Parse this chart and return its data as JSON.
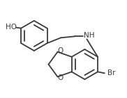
{
  "bg_color": "#ffffff",
  "line_color": "#3a3a3a",
  "line_width": 1.3,
  "figsize": [
    1.82,
    1.41
  ],
  "dpi": 100,
  "ho_label": "HO",
  "br_label": "Br",
  "nh_label": "NH",
  "o_label": "O",
  "text_color": "#3a3a3a",
  "font_size": 7.5
}
